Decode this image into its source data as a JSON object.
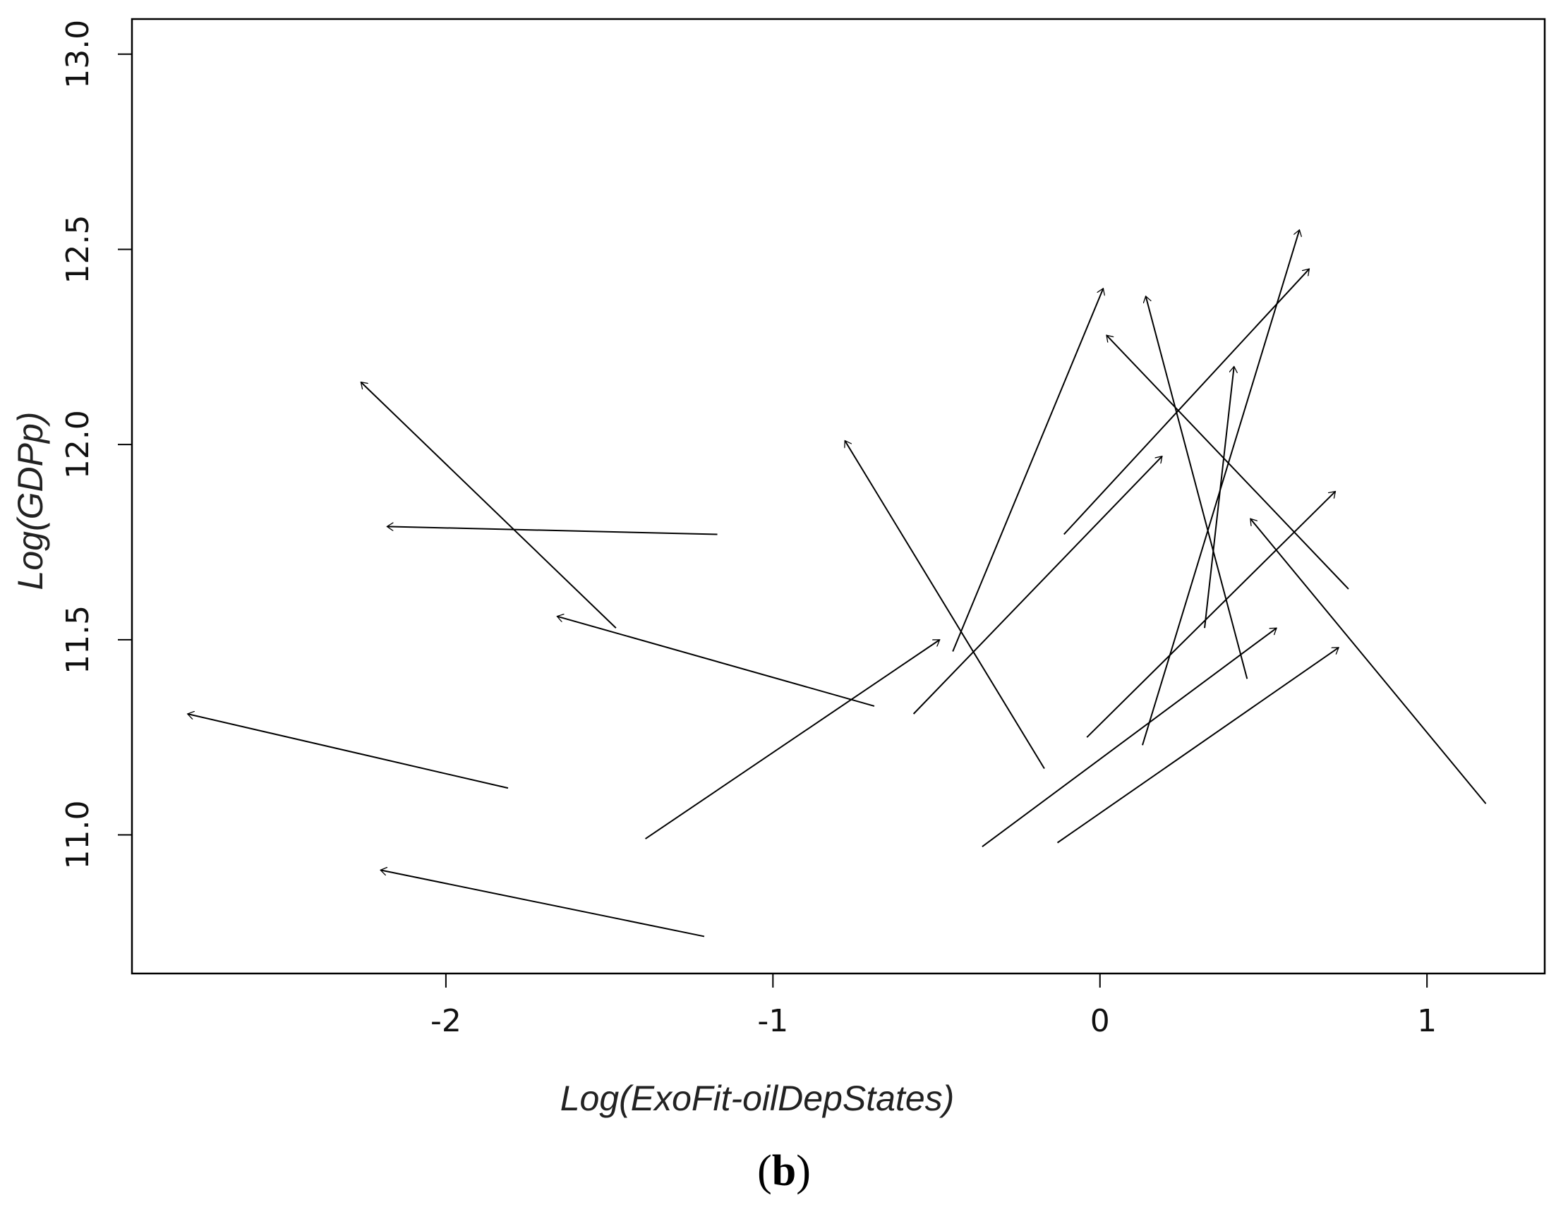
{
  "chart_data": {
    "type": "arrow-scatter",
    "xlabel": "Log(ExoFit-oilDepStates)",
    "ylabel": "Log(GDPp)",
    "xlim": [
      -2.96,
      1.36
    ],
    "ylim": [
      10.645,
      13.09
    ],
    "x_ticks": [
      {
        "value": -2,
        "label": "-2"
      },
      {
        "value": -1,
        "label": "-1"
      },
      {
        "value": 0,
        "label": "0"
      },
      {
        "value": 1,
        "label": "1"
      }
    ],
    "y_ticks": [
      {
        "value": 11.0,
        "label": "11.0"
      },
      {
        "value": 11.5,
        "label": "11.5"
      },
      {
        "value": 12.0,
        "label": "12.0"
      },
      {
        "value": 12.5,
        "label": "12.5"
      },
      {
        "value": 13.0,
        "label": "13.0"
      }
    ],
    "grid": false,
    "arrows": [
      {
        "x0": -1.17,
        "y0": 11.77,
        "x1": -2.18,
        "y1": 11.79
      },
      {
        "x0": -1.48,
        "y0": 11.53,
        "x1": -2.26,
        "y1": 12.16
      },
      {
        "x0": -0.69,
        "y0": 11.33,
        "x1": -1.66,
        "y1": 11.56
      },
      {
        "x0": -1.81,
        "y0": 11.12,
        "x1": -2.79,
        "y1": 11.31
      },
      {
        "x0": -1.21,
        "y0": 10.74,
        "x1": -2.2,
        "y1": 10.91
      },
      {
        "x0": -1.39,
        "y0": 10.99,
        "x1": -0.49,
        "y1": 11.5
      },
      {
        "x0": -0.17,
        "y0": 11.17,
        "x1": -0.78,
        "y1": 12.01
      },
      {
        "x0": -0.45,
        "y0": 11.47,
        "x1": 0.01,
        "y1": 12.4
      },
      {
        "x0": -0.57,
        "y0": 11.31,
        "x1": 0.19,
        "y1": 11.97
      },
      {
        "x0": -0.11,
        "y0": 11.77,
        "x1": 0.64,
        "y1": 12.45
      },
      {
        "x0": 0.13,
        "y0": 11.23,
        "x1": 0.61,
        "y1": 12.55
      },
      {
        "x0": 0.45,
        "y0": 11.4,
        "x1": 0.14,
        "y1": 12.38
      },
      {
        "x0": 0.32,
        "y0": 11.53,
        "x1": 0.41,
        "y1": 12.2
      },
      {
        "x0": 0.76,
        "y0": 11.63,
        "x1": 0.02,
        "y1": 12.28
      },
      {
        "x0": 1.18,
        "y0": 11.08,
        "x1": 0.46,
        "y1": 11.81
      },
      {
        "x0": -0.04,
        "y0": 11.25,
        "x1": 0.72,
        "y1": 11.88
      },
      {
        "x0": -0.36,
        "y0": 10.97,
        "x1": 0.54,
        "y1": 11.53
      },
      {
        "x0": -0.13,
        "y0": 10.98,
        "x1": 0.73,
        "y1": 11.48
      }
    ]
  },
  "caption": {
    "open": "(",
    "letter": "b",
    "close": ")"
  }
}
